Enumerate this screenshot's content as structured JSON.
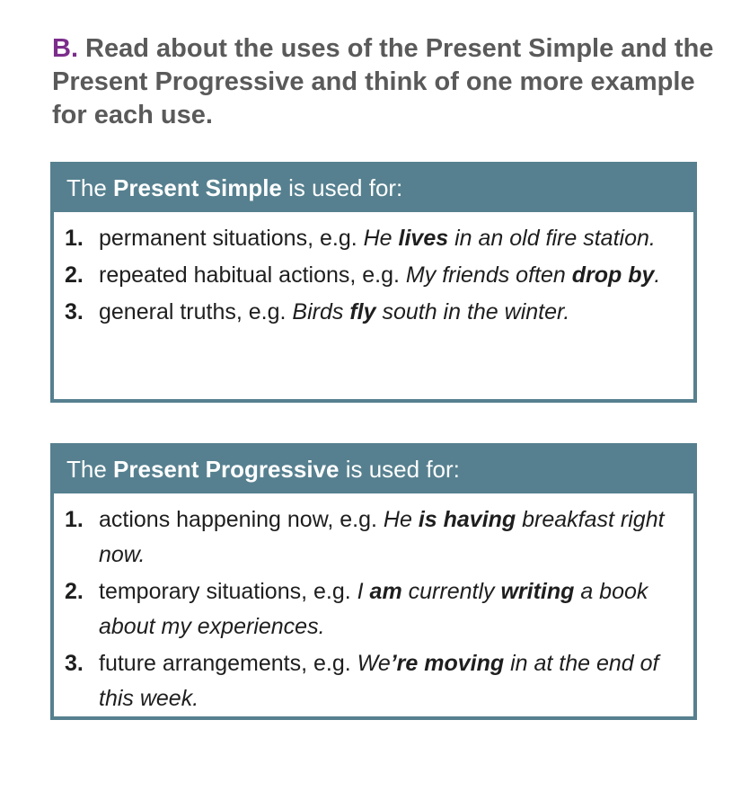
{
  "instruction": {
    "letter": "B.",
    "text": " Read about the uses of the Present Simple and the Present Progressive and think of one more example for each use."
  },
  "present_simple": {
    "header": {
      "before": "The ",
      "strong": "Present Simple",
      "after": " is used for:"
    },
    "items": [
      {
        "number": "1.",
        "use": "permanent situations, e.g. ",
        "ex1": "He ",
        "ex2": "lives",
        "ex3": " in an old fire station."
      },
      {
        "number": "2.",
        "use": "repeated habitual actions, e.g. ",
        "ex1": "My friends often ",
        "ex2": "drop by",
        "ex3": "."
      },
      {
        "number": "3.",
        "use": "general truths, e.g. ",
        "ex1": "Birds ",
        "ex2": "fly",
        "ex3": " south in the winter."
      }
    ]
  },
  "present_progressive": {
    "header": {
      "before": "The ",
      "strong": "Present Progressive",
      "after": " is used for:"
    },
    "items": [
      {
        "number": "1.",
        "use": "actions happening now, e.g. ",
        "ex1": "He ",
        "ex2": "is having",
        "ex3": " breakfast right now."
      },
      {
        "number": "2.",
        "use": "temporary situations, e.g. ",
        "ex1": "I ",
        "ex2": "am",
        "ex3": " currently ",
        "ex4": "writing",
        "ex5": " a book about my experiences."
      },
      {
        "number": "3.",
        "use": "future arrangements, e.g. ",
        "ex1": "We",
        "ex2": "’re moving",
        "ex3": " in at the end of this week."
      }
    ]
  },
  "colors": {
    "accent_teal": "#56808f",
    "letter_purple": "#7b2d8b",
    "instruction_grey": "#5a5a5a"
  }
}
